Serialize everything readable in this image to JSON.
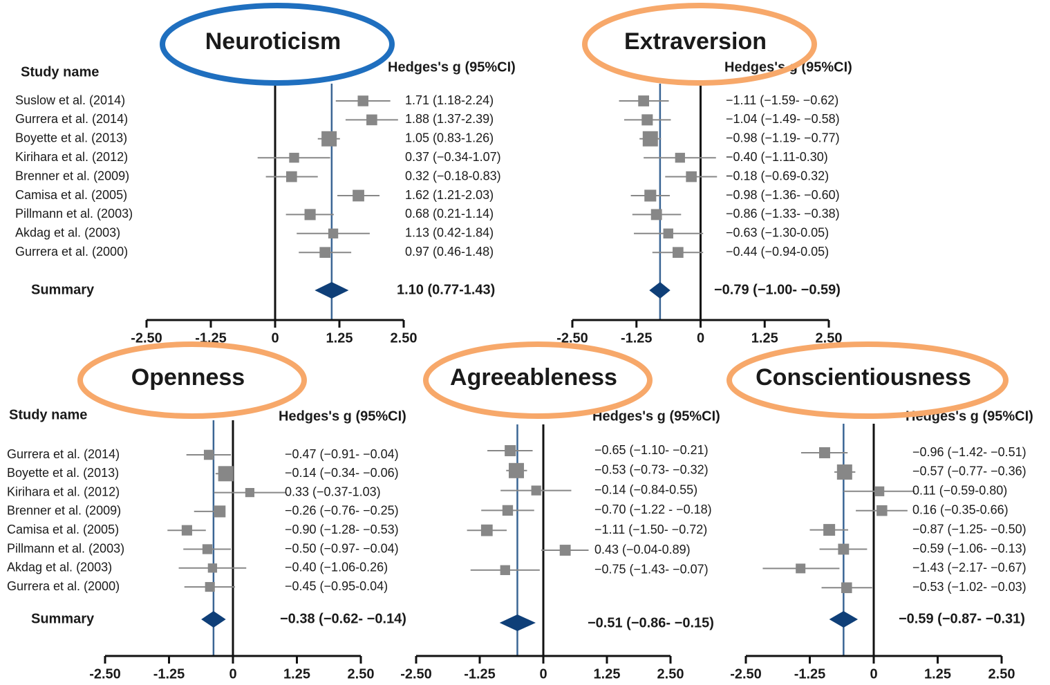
{
  "chart_data": [
    {
      "type": "forest",
      "title": "Neuroticism",
      "header_study": "Study name",
      "header_effect": "Hedges's g (95%CI)",
      "xticks": [
        "-2.50",
        "-1.25",
        "0",
        "1.25",
        "2.50"
      ],
      "xlim": [
        -2.5,
        2.5
      ],
      "studies": [
        {
          "name": "Suslow et al. (2014)",
          "g": 1.71,
          "lo": 1.18,
          "hi": 2.24,
          "label": "1.71 (1.18-2.24)"
        },
        {
          "name": "Gurrera et al. (2014)",
          "g": 1.88,
          "lo": 1.37,
          "hi": 2.39,
          "label": "1.88 (1.37-2.39)"
        },
        {
          "name": "Boyette et al. (2013)",
          "g": 1.05,
          "lo": 0.83,
          "hi": 1.26,
          "label": "1.05 (0.83-1.26)"
        },
        {
          "name": "Kirihara et al. (2012)",
          "g": 0.37,
          "lo": -0.34,
          "hi": 1.07,
          "label": "0.37 (−0.34-1.07)"
        },
        {
          "name": "Brenner et al. (2009)",
          "g": 0.32,
          "lo": -0.18,
          "hi": 0.83,
          "label": "0.32 (−0.18-0.83)"
        },
        {
          "name": "Camisa et al. (2005)",
          "g": 1.62,
          "lo": 1.21,
          "hi": 2.03,
          "label": "1.62 (1.21-2.03)"
        },
        {
          "name": "Pillmann et al. (2003)",
          "g": 0.68,
          "lo": 0.21,
          "hi": 1.14,
          "label": "0.68 (0.21-1.14)"
        },
        {
          "name": "Akdag et al. (2003)",
          "g": 1.13,
          "lo": 0.42,
          "hi": 1.84,
          "label": "1.13 (0.42-1.84)"
        },
        {
          "name": "Gurrera et al. (2000)",
          "g": 0.97,
          "lo": 0.46,
          "hi": 1.48,
          "label": "0.97 (0.46-1.48)"
        }
      ],
      "summary": {
        "label": "Summary",
        "g": 1.1,
        "lo": 0.77,
        "hi": 1.43,
        "text": "1.10 (0.77-1.43)"
      }
    },
    {
      "type": "forest",
      "title": "Extraversion",
      "header_study": "",
      "header_effect": "Hedges's g (95%CI)",
      "xticks": [
        "-2.50",
        "-1.25",
        "0",
        "1.25",
        "2.50"
      ],
      "xlim": [
        -2.5,
        2.5
      ],
      "studies": [
        {
          "name": "",
          "g": -1.11,
          "lo": -1.59,
          "hi": -0.62,
          "label": "−1.11 (−1.59- −0.62)"
        },
        {
          "name": "",
          "g": -1.04,
          "lo": -1.49,
          "hi": -0.58,
          "label": "−1.04 (−1.49- −0.58)"
        },
        {
          "name": "",
          "g": -0.98,
          "lo": -1.19,
          "hi": -0.77,
          "label": "−0.98 (−1.19- −0.77)"
        },
        {
          "name": "",
          "g": -0.4,
          "lo": -1.11,
          "hi": 0.3,
          "label": "−0.40 (−1.11-0.30)"
        },
        {
          "name": "",
          "g": -0.18,
          "lo": -0.69,
          "hi": 0.32,
          "label": "−0.18 (−0.69-0.32)"
        },
        {
          "name": "",
          "g": -0.98,
          "lo": -1.36,
          "hi": -0.6,
          "label": "−0.98 (−1.36- −0.60)"
        },
        {
          "name": "",
          "g": -0.86,
          "lo": -1.33,
          "hi": -0.38,
          "label": "−0.86 (−1.33- −0.38)"
        },
        {
          "name": "",
          "g": -0.63,
          "lo": -1.3,
          "hi": 0.05,
          "label": "−0.63 (−1.30-0.05)"
        },
        {
          "name": "",
          "g": -0.44,
          "lo": -0.94,
          "hi": 0.05,
          "label": "−0.44 (−0.94-0.05)"
        }
      ],
      "summary": {
        "label": "",
        "g": -0.79,
        "lo": -1.0,
        "hi": -0.59,
        "text": "−0.79 (−1.00- −0.59)"
      }
    },
    {
      "type": "forest",
      "title": "Openness",
      "header_study": "Study name",
      "header_effect": "Hedges's g (95%CI)",
      "xticks": [
        "-2.50",
        "-1.25",
        "0",
        "1.25",
        "2.50"
      ],
      "xlim": [
        -2.5,
        2.5
      ],
      "studies": [
        {
          "name": "Gurrera et al. (2014)",
          "g": -0.47,
          "lo": -0.91,
          "hi": -0.04,
          "label": "−0.47 (−0.91- −0.04)"
        },
        {
          "name": "Boyette et al. (2013)",
          "g": -0.14,
          "lo": -0.34,
          "hi": -0.06,
          "label": "−0.14 (−0.34- −0.06)"
        },
        {
          "name": "Kirihara et al. (2012)",
          "g": 0.33,
          "lo": -0.37,
          "hi": 1.03,
          "label": "0.33 (−0.37-1.03)"
        },
        {
          "name": "Brenner et al. (2009)",
          "g": -0.26,
          "lo": -0.76,
          "hi": -0.25,
          "label": "−0.26 (−0.76- −0.25)"
        },
        {
          "name": "Camisa et al. (2005)",
          "g": -0.9,
          "lo": -1.28,
          "hi": -0.53,
          "label": "−0.90 (−1.28- −0.53)"
        },
        {
          "name": "Pillmann et al. (2003)",
          "g": -0.5,
          "lo": -0.97,
          "hi": -0.04,
          "label": "−0.50 (−0.97- −0.04)"
        },
        {
          "name": "Akdag et al. (2003)",
          "g": -0.4,
          "lo": -1.06,
          "hi": 0.26,
          "label": "−0.40 (−1.06-0.26)"
        },
        {
          "name": "Gurrera et al. (2000)",
          "g": -0.45,
          "lo": -0.95,
          "hi": 0.04,
          "label": "−0.45 (−0.95-0.04)"
        }
      ],
      "summary": {
        "label": "Summary",
        "g": -0.38,
        "lo": -0.62,
        "hi": -0.14,
        "text": "−0.38 (−0.62- −0.14)"
      }
    },
    {
      "type": "forest",
      "title": "Agreeableness",
      "header_study": "",
      "header_effect": "Hedges's g (95%CI)",
      "xticks": [
        "-2.50",
        "-1.25",
        "0",
        "1.25",
        "2.50"
      ],
      "xlim": [
        -2.5,
        2.5
      ],
      "studies": [
        {
          "name": "",
          "g": -0.65,
          "lo": -1.1,
          "hi": -0.21,
          "label": "−0.65 (−1.10- −0.21)"
        },
        {
          "name": "",
          "g": -0.53,
          "lo": -0.73,
          "hi": -0.32,
          "label": "−0.53 (−0.73- −0.32)"
        },
        {
          "name": "",
          "g": -0.14,
          "lo": -0.84,
          "hi": 0.55,
          "label": "−0.14 (−0.84-0.55)"
        },
        {
          "name": "",
          "g": -0.7,
          "lo": -1.22,
          "hi": -0.18,
          "label": "−0.70 (−1.22 - −0.18)"
        },
        {
          "name": "",
          "g": -1.11,
          "lo": -1.5,
          "hi": -0.72,
          "label": "−1.11 (−1.50- −0.72)"
        },
        {
          "name": "",
          "g": 0.43,
          "lo": -0.04,
          "hi": 0.89,
          "label": "0.43 (−0.04-0.89)"
        },
        {
          "name": "",
          "g": -0.75,
          "lo": -1.43,
          "hi": -0.07,
          "label": "−0.75 (−1.43- −0.07)"
        }
      ],
      "summary": {
        "label": "",
        "g": -0.51,
        "lo": -0.86,
        "hi": -0.15,
        "text": "−0.51 (−0.86- −0.15)"
      }
    },
    {
      "type": "forest",
      "title": "Conscientiousness",
      "header_study": "",
      "header_effect": "Hedges's g (95%CI)",
      "xticks": [
        "-2.50",
        "-1.25",
        "0",
        "1.25",
        "2.50"
      ],
      "xlim": [
        -2.5,
        2.5
      ],
      "studies": [
        {
          "name": "",
          "g": -0.96,
          "lo": -1.42,
          "hi": -0.51,
          "label": "−0.96 (−1.42- −0.51)"
        },
        {
          "name": "",
          "g": -0.57,
          "lo": -0.77,
          "hi": -0.36,
          "label": "−0.57 (−0.77- −0.36)"
        },
        {
          "name": "",
          "g": 0.11,
          "lo": -0.59,
          "hi": 0.8,
          "label": "0.11 (−0.59-0.80)"
        },
        {
          "name": "",
          "g": 0.16,
          "lo": -0.35,
          "hi": 0.66,
          "label": "0.16 (−0.35-0.66)"
        },
        {
          "name": "",
          "g": -0.87,
          "lo": -1.25,
          "hi": -0.5,
          "label": "−0.87 (−1.25- −0.50)"
        },
        {
          "name": "",
          "g": -0.59,
          "lo": -1.06,
          "hi": -0.13,
          "label": "−0.59 (−1.06- −0.13)"
        },
        {
          "name": "",
          "g": -1.43,
          "lo": -2.17,
          "hi": -0.67,
          "label": "−1.43 (−2.17- −0.67)"
        },
        {
          "name": "",
          "g": -0.53,
          "lo": -1.02,
          "hi": -0.03,
          "label": "−0.53 (−1.02- −0.03)"
        }
      ],
      "summary": {
        "label": "",
        "g": -0.59,
        "lo": -0.87,
        "hi": -0.31,
        "text": "−0.59 (−0.87- −0.31)"
      }
    }
  ],
  "highlight": {
    "Neuroticism": "#1f6fbf",
    "Extraversion": "#f7a86a",
    "Openness": "#f7a86a",
    "Agreeableness": "#f7a86a",
    "Conscientiousness": "#f7a86a"
  },
  "colors": {
    "marker": "#878787",
    "ci_line": "#878787",
    "summary": "#0f3f78",
    "summary_line": "#3a6594",
    "axis": "#111111"
  }
}
